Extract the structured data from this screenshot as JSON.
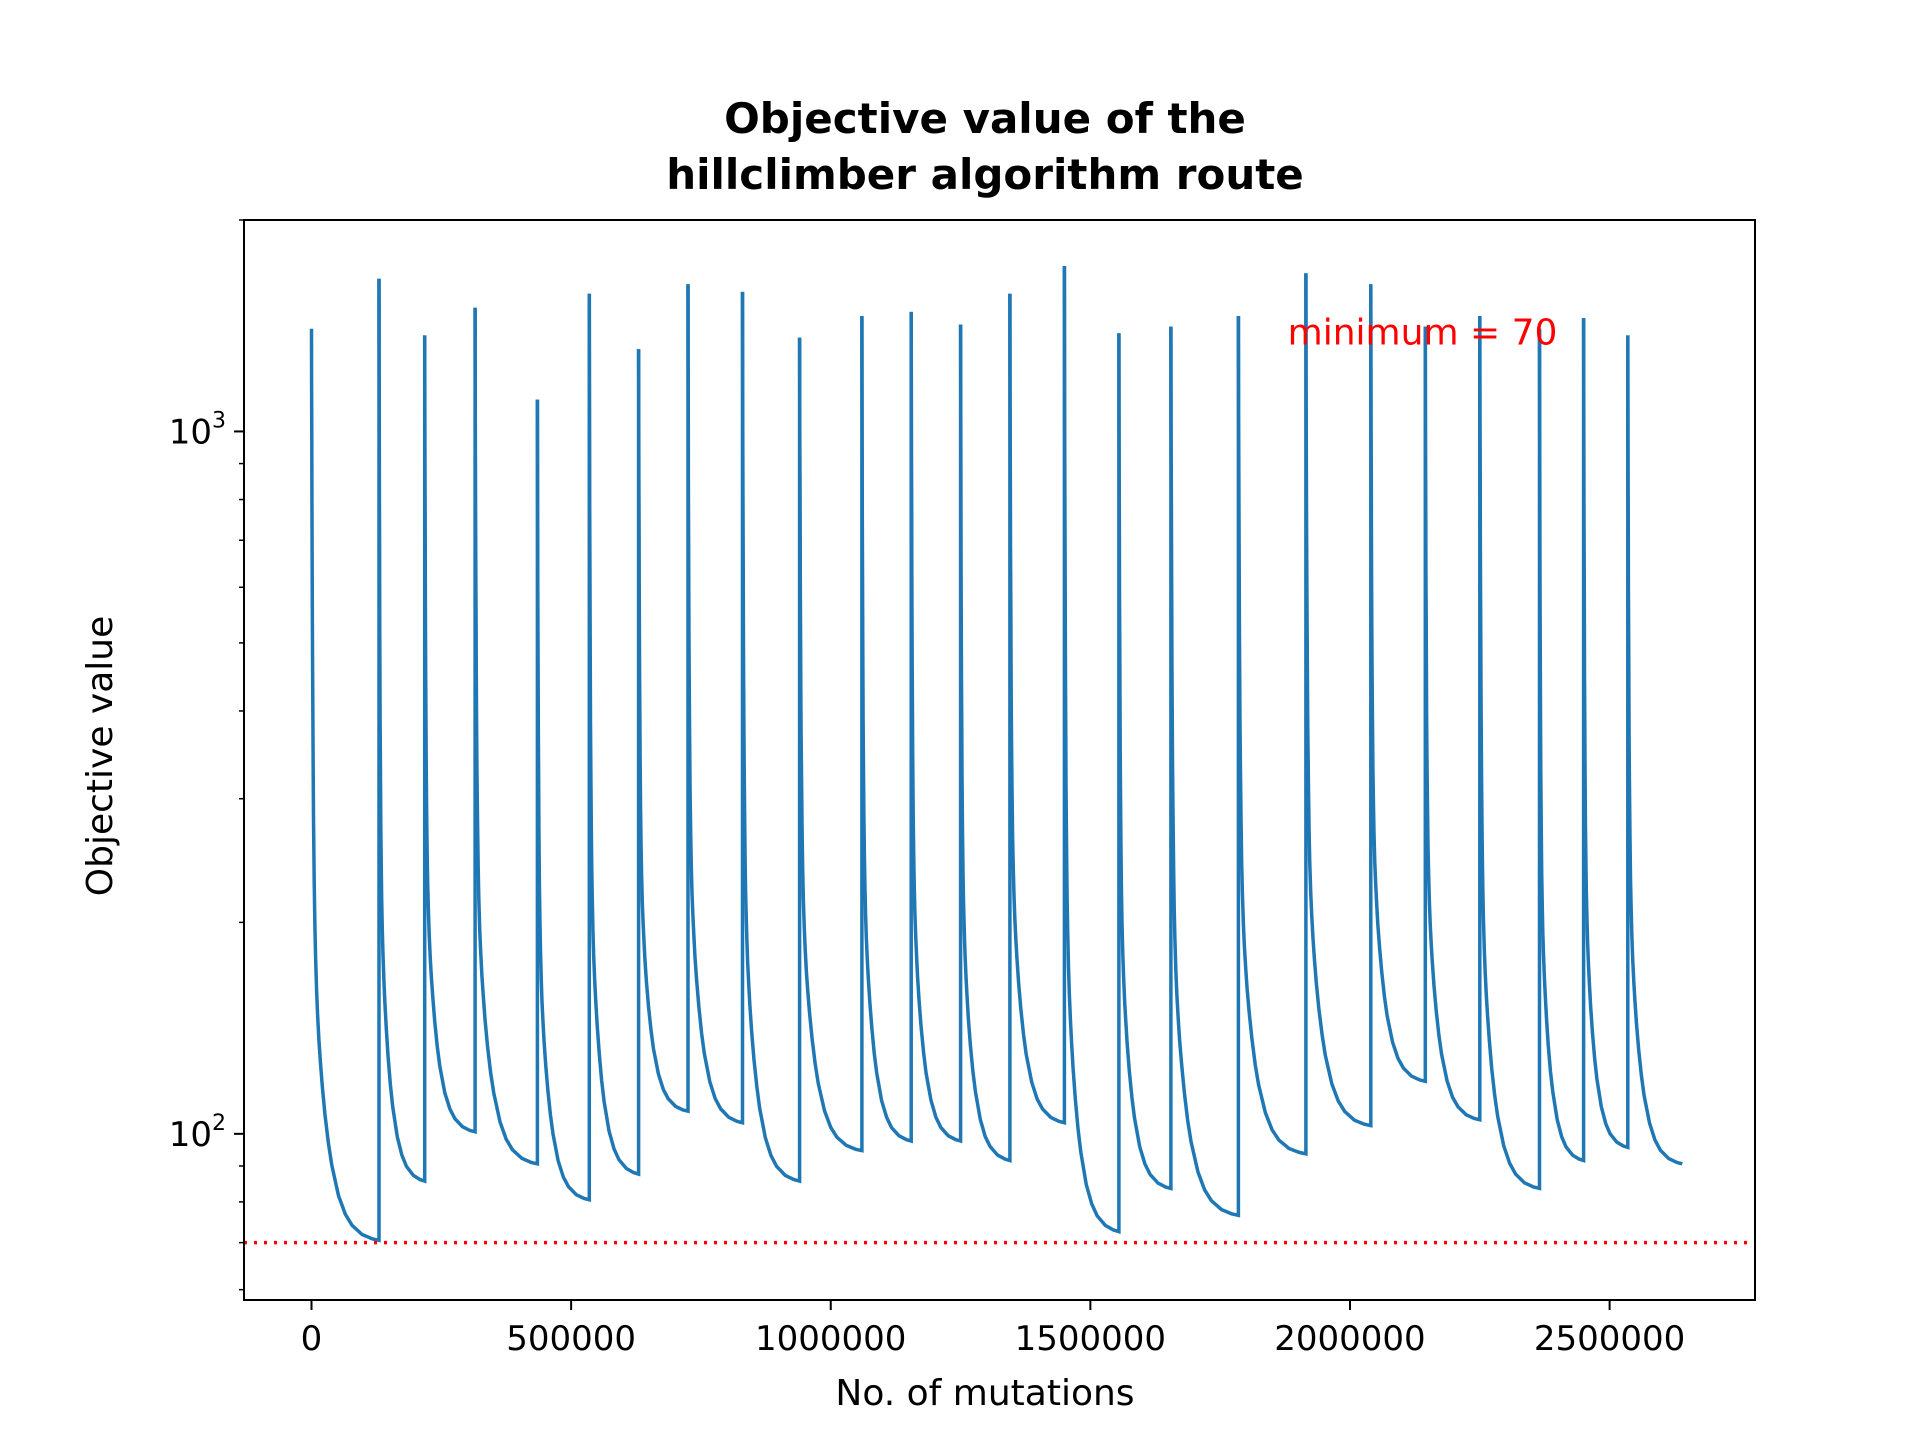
{
  "chart_data": {
    "type": "line",
    "title": [
      "Objective value of the",
      "hillclimber algorithm route"
    ],
    "xlabel": "No. of mutations",
    "ylabel": "Objective value",
    "xscale": "linear",
    "yscale": "log",
    "xlim": [
      -130000,
      2780000
    ],
    "ylim": [
      58,
      2000
    ],
    "grid": false,
    "x_ticks": [
      {
        "value": 0,
        "label": "0"
      },
      {
        "value": 500000,
        "label": "500000"
      },
      {
        "value": 1000000,
        "label": "1000000"
      },
      {
        "value": 1500000,
        "label": "1500000"
      },
      {
        "value": 2000000,
        "label": "2000000"
      },
      {
        "value": 2500000,
        "label": "2500000"
      }
    ],
    "y_ticks": [
      {
        "value": 100,
        "base": "10",
        "exp": "2"
      },
      {
        "value": 1000,
        "base": "10",
        "exp": "3"
      }
    ],
    "series_color": "#1f77b4",
    "minimum_line": {
      "value": 70,
      "color": "#ff0000",
      "style": "dotted"
    },
    "annotation": {
      "text": "minimum = 70",
      "x": 1880000,
      "y": 1330,
      "color": "#ff0000"
    },
    "runs": [
      {
        "start": 0,
        "end": 130000,
        "peak": 1400,
        "final": 70
      },
      {
        "start": 130000,
        "end": 218000,
        "peak": 1650,
        "final": 85
      },
      {
        "start": 218000,
        "end": 315000,
        "peak": 1370,
        "final": 100
      },
      {
        "start": 315000,
        "end": 435000,
        "peak": 1500,
        "final": 90
      },
      {
        "start": 435000,
        "end": 535000,
        "peak": 1110,
        "final": 80
      },
      {
        "start": 535000,
        "end": 630000,
        "peak": 1570,
        "final": 87
      },
      {
        "start": 630000,
        "end": 725000,
        "peak": 1310,
        "final": 107
      },
      {
        "start": 725000,
        "end": 830000,
        "peak": 1620,
        "final": 103
      },
      {
        "start": 830000,
        "end": 940000,
        "peak": 1580,
        "final": 85
      },
      {
        "start": 940000,
        "end": 1060000,
        "peak": 1360,
        "final": 94
      },
      {
        "start": 1060000,
        "end": 1155000,
        "peak": 1460,
        "final": 97
      },
      {
        "start": 1155000,
        "end": 1250000,
        "peak": 1480,
        "final": 97
      },
      {
        "start": 1250000,
        "end": 1345000,
        "peak": 1420,
        "final": 91
      },
      {
        "start": 1345000,
        "end": 1450000,
        "peak": 1570,
        "final": 103
      },
      {
        "start": 1450000,
        "end": 1555000,
        "peak": 1720,
        "final": 72
      },
      {
        "start": 1555000,
        "end": 1655000,
        "peak": 1380,
        "final": 83
      },
      {
        "start": 1655000,
        "end": 1785000,
        "peak": 1410,
        "final": 76
      },
      {
        "start": 1785000,
        "end": 1915000,
        "peak": 1460,
        "final": 93
      },
      {
        "start": 1915000,
        "end": 2040000,
        "peak": 1680,
        "final": 102
      },
      {
        "start": 2040000,
        "end": 2145000,
        "peak": 1620,
        "final": 118
      },
      {
        "start": 2145000,
        "end": 2250000,
        "peak": 1410,
        "final": 104
      },
      {
        "start": 2250000,
        "end": 2365000,
        "peak": 1460,
        "final": 83
      },
      {
        "start": 2365000,
        "end": 2450000,
        "peak": 1400,
        "final": 91
      },
      {
        "start": 2450000,
        "end": 2535000,
        "peak": 1450,
        "final": 95
      },
      {
        "start": 2535000,
        "end": 2640000,
        "peak": 1370,
        "final": 90
      }
    ]
  }
}
